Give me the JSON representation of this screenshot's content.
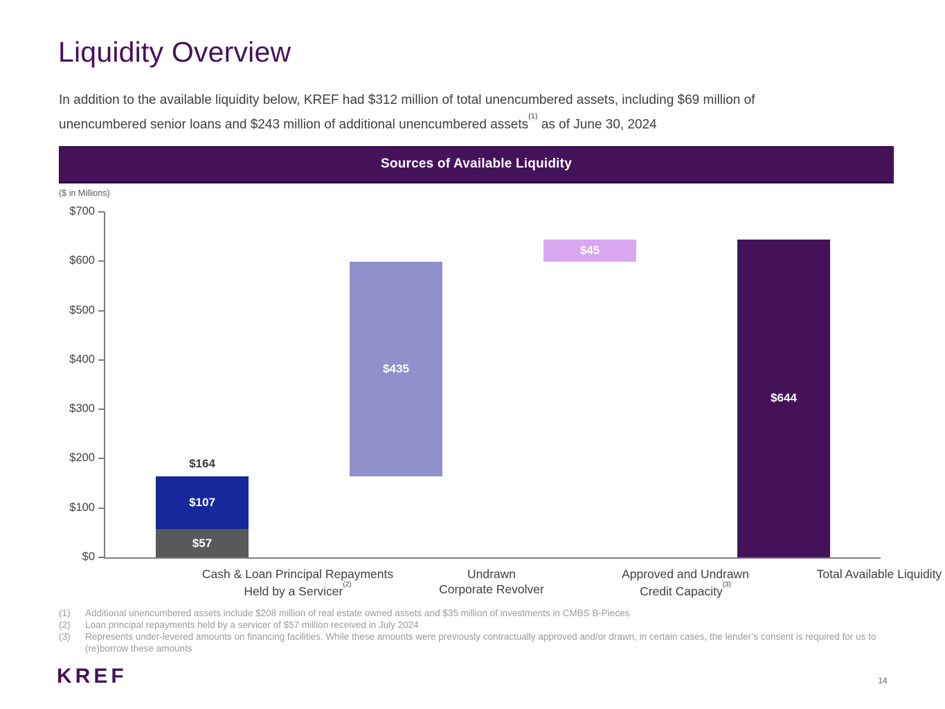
{
  "page": {
    "title": "Liquidity Overview",
    "page_number": "14"
  },
  "intro": {
    "part1": "In addition to the available liquidity below, KREF had $312 million of total unencumbered assets, including $69 million of unencumbered senior loans and $243 million of additional unencumbered assets",
    "sup": "(1)",
    "part2": " as of June 30, 2024"
  },
  "logo": "KREF",
  "chart_data": {
    "type": "bar",
    "variant": "stacked-waterfall",
    "title": "Sources of Available Liquidity",
    "units_note": "($ in Millions)",
    "ylim": [
      0,
      700
    ],
    "grid": false,
    "yticks": [
      {
        "label": "$0",
        "value": 0
      },
      {
        "label": "$100",
        "value": 100
      },
      {
        "label": "$200",
        "value": 200
      },
      {
        "label": "$300",
        "value": 300
      },
      {
        "label": "$400",
        "value": 400
      },
      {
        "label": "$500",
        "value": 500
      },
      {
        "label": "$600",
        "value": 600
      },
      {
        "label": "$700",
        "value": 700
      }
    ],
    "categories": [
      {
        "line1": "Cash & Loan Principal Repayments",
        "line2": "Held by a Servicer",
        "sup": "(2)"
      },
      {
        "line1": "Undrawn",
        "line2": "Corporate Revolver",
        "sup": ""
      },
      {
        "line1": "Approved and Undrawn",
        "line2": "Credit Capacity",
        "sup": "(3)"
      },
      {
        "line1": "Total Available Liquidity",
        "line2": "",
        "sup": ""
      }
    ],
    "bars": [
      {
        "category": "Cash & Loan Principal Repayments Held by a Servicer",
        "total": 164,
        "total_label": "$164",
        "segments": [
          {
            "label": "$57",
            "value": 57,
            "base": 0,
            "color": "#58595B"
          },
          {
            "label": "$107",
            "value": 107,
            "base": 57,
            "color": "#16289C"
          }
        ]
      },
      {
        "category": "Undrawn Corporate Revolver",
        "segments": [
          {
            "label": "$435",
            "value": 435,
            "base": 164,
            "color": "#8E91CB"
          }
        ]
      },
      {
        "category": "Approved and Undrawn Credit Capacity",
        "segments": [
          {
            "label": "$45",
            "value": 45,
            "base": 599,
            "color": "#D9A7F0"
          }
        ]
      },
      {
        "category": "Total Available Liquidity",
        "segments": [
          {
            "label": "$644",
            "value": 644,
            "base": 0,
            "color": "#45125A"
          }
        ]
      }
    ],
    "colors": {
      "accent_purple": "#45125A",
      "blue": "#16289C",
      "gray": "#58595B",
      "periwinkle": "#8E91CB",
      "lavender": "#D9A7F0",
      "axis": "#7f7f7f"
    }
  },
  "footnotes": [
    {
      "num": "(1)",
      "text": "Additional unencumbered assets include $208 million of real estate owned assets and $35 million of investments in CMBS B-Pieces"
    },
    {
      "num": "(2)",
      "text": "Loan principal repayments held by a servicer of $57 million received in July 2024"
    },
    {
      "num": "(3)",
      "text": "Represents under-levered amounts on financing facilities. While these amounts were previously contractually approved and/or drawn, in certain cases, the lender’s consent is required for us to (re)borrow these amounts"
    }
  ]
}
